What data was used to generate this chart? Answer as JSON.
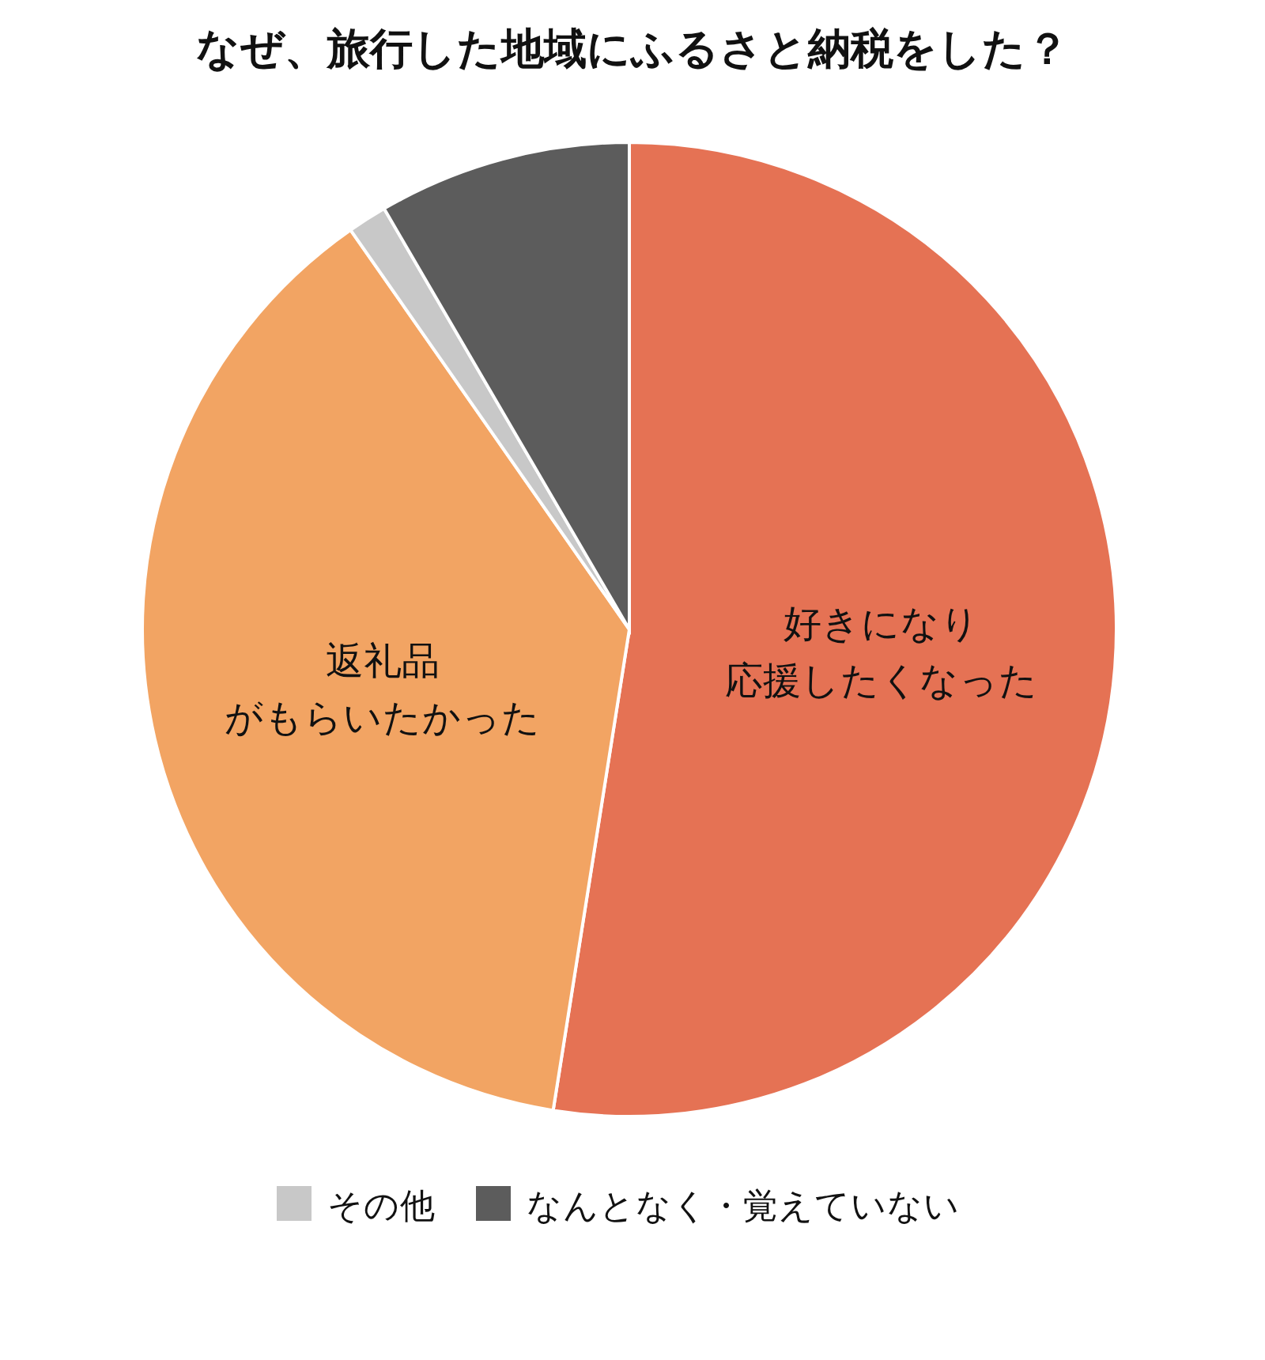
{
  "chart_data": {
    "type": "pie",
    "title": "なぜ、旅行した地域にふるさと納税をした？",
    "categories": [
      "好きになり応援したくなった",
      "返礼品がもらいたかった",
      "その他",
      "なんとなく・覚えていない"
    ],
    "values": [
      52.5,
      37.8,
      1.3,
      8.4
    ],
    "colors": [
      "#e57254",
      "#f2a463",
      "#c8c8c8",
      "#5c5c5c"
    ],
    "legend": "bottom"
  }
}
